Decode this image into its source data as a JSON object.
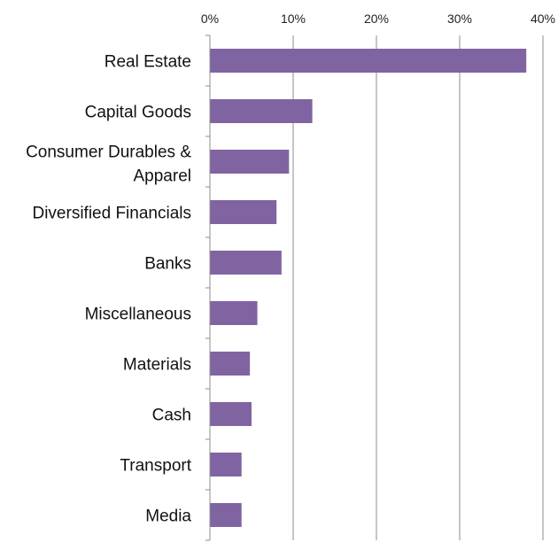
{
  "chart_data": {
    "type": "bar",
    "orientation": "horizontal",
    "title": "",
    "xlabel": "",
    "ylabel": "",
    "xlim": [
      0,
      40
    ],
    "x_ticks": [
      "0%",
      "10%",
      "20%",
      "30%",
      "40%"
    ],
    "x_tick_values": [
      0,
      10,
      20,
      30,
      40
    ],
    "x_axis_position": "top",
    "grid": "vertical",
    "legend": "none",
    "bar_color": "#8064a2",
    "categories": [
      "Real Estate",
      "Capital Goods",
      "Consumer Durables & Apparel",
      "Diversified Financials",
      "Banks",
      "Miscellaneous",
      "Materials",
      "Cash",
      "Transport",
      "Media"
    ],
    "values": [
      38.0,
      12.3,
      9.5,
      8.0,
      8.6,
      5.7,
      4.8,
      5.0,
      3.8,
      3.8
    ]
  }
}
